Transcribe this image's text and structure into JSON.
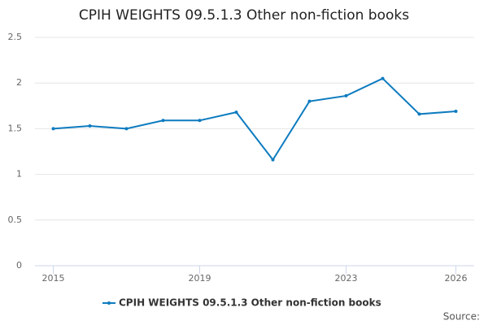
{
  "chart_data": {
    "type": "line",
    "title": "CPIH WEIGHTS 09.5.1.3 Other non-fiction books",
    "x": [
      2015,
      2016,
      2017,
      2018,
      2019,
      2020,
      2021,
      2022,
      2023,
      2024,
      2025,
      2026
    ],
    "series": [
      {
        "name": "CPIH WEIGHTS 09.5.1.3 Other non-fiction books",
        "color": "#0d7bbf",
        "values": [
          1.5,
          1.53,
          1.5,
          1.59,
          1.59,
          1.68,
          1.16,
          1.8,
          1.86,
          2.05,
          1.66,
          1.69
        ]
      }
    ],
    "xlim": [
      2014.5,
      2026.5
    ],
    "xticks": [
      2015,
      2019,
      2023,
      2026
    ],
    "ylim": [
      0,
      2.5
    ],
    "yticks": [
      0,
      0.5,
      1,
      1.5,
      2,
      2.5
    ],
    "grid": true,
    "legend": "bottom",
    "source": "Source:"
  }
}
